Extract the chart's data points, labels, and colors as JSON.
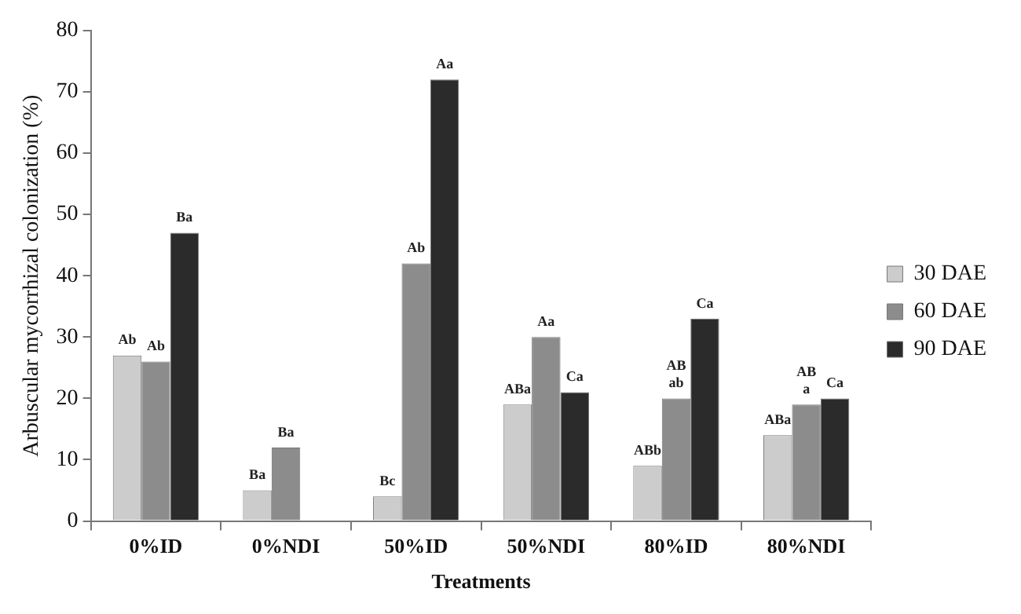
{
  "chart_data": {
    "type": "bar",
    "xlabel": "Treatments",
    "ylabel": "Arbuscular mycorrhizal colonization (%)",
    "categories": [
      "0%ID",
      "0%NDI",
      "50%ID",
      "50%NDI",
      "80%ID",
      "80%NDI"
    ],
    "series": [
      {
        "name": "30 DAE",
        "color": "#cccccc",
        "values": [
          27,
          5,
          4,
          19,
          9,
          14
        ],
        "value_labels": [
          "Ab",
          "Ba",
          "Bc",
          "ABa",
          "ABb",
          "ABa"
        ]
      },
      {
        "name": "60 DAE",
        "color": "#8c8c8c",
        "values": [
          26,
          12,
          42,
          30,
          20,
          19
        ],
        "value_labels": [
          "Ab",
          "Ba",
          "Ab",
          "Aa",
          "AB\nab",
          "AB\na"
        ]
      },
      {
        "name": "90 DAE",
        "color": "#2b2b2b",
        "values": [
          47,
          null,
          72,
          21,
          33,
          20
        ],
        "value_labels": [
          "Ba",
          null,
          "Aa",
          "Ca",
          "Ca",
          "Ca"
        ]
      }
    ],
    "ylim": [
      0,
      80
    ],
    "yticks": [
      0,
      10,
      20,
      30,
      40,
      50,
      60,
      70,
      80
    ],
    "grid": false,
    "legend": "right"
  }
}
